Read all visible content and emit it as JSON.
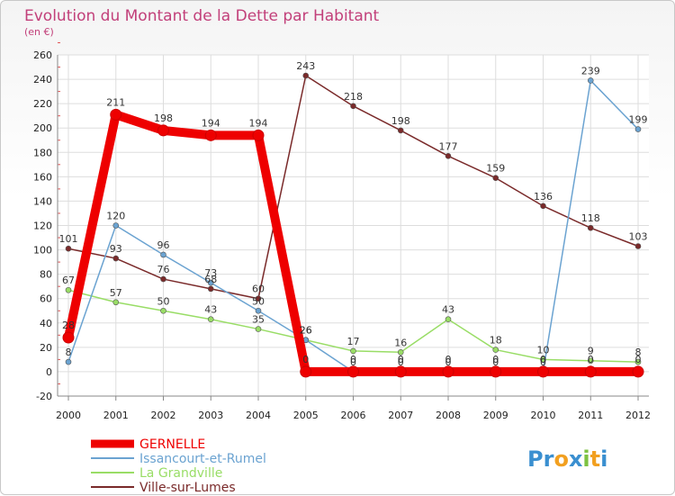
{
  "chart_data": {
    "type": "line",
    "title": "Evolution du Montant de la Dette par Habitant",
    "subtitle": "(en €)",
    "xlabel": "",
    "ylabel": "",
    "x": [
      "2000",
      "2001",
      "2002",
      "2003",
      "2004",
      "2005",
      "2006",
      "2007",
      "2008",
      "2009",
      "2010",
      "2011",
      "2012"
    ],
    "ylim": [
      -20,
      260
    ],
    "yticks": [
      "-20",
      "0",
      "20",
      "40",
      "60",
      "80",
      "100",
      "120",
      "140",
      "160",
      "180",
      "200",
      "220",
      "240",
      "260"
    ],
    "grid": true,
    "legend_position": "bottom-left",
    "series": [
      {
        "name": "GERNELLE",
        "color": "#ee0000",
        "values": [
          28,
          211,
          198,
          194,
          194,
          0,
          0,
          0,
          0,
          0,
          0,
          0,
          0
        ],
        "labels": [
          "28",
          "211",
          "198",
          "194",
          "194",
          "0",
          "0",
          "0",
          "0",
          "0",
          "0",
          "0",
          "0"
        ]
      },
      {
        "name": "Issancourt-et-Rumel",
        "color": "#6ba3d1",
        "values": [
          8,
          120,
          96,
          73,
          50,
          26,
          0,
          0,
          0,
          0,
          0,
          239,
          199
        ],
        "labels": [
          "8",
          "120",
          "96",
          "73",
          "50",
          "26",
          "0",
          "0",
          "0",
          "0",
          "0",
          "239",
          "199"
        ]
      },
      {
        "name": "La Grandville",
        "color": "#99dd66",
        "values": [
          67,
          57,
          50,
          43,
          35,
          26,
          17,
          16,
          43,
          18,
          10,
          9,
          8
        ],
        "labels": [
          "67",
          "57",
          "50",
          "43",
          "35",
          "26",
          "17",
          "16",
          "43",
          "18",
          "10",
          "9",
          "8"
        ]
      },
      {
        "name": "Ville-sur-Lumes",
        "color": "#7a2a2a",
        "values": [
          101,
          93,
          76,
          68,
          60,
          243,
          218,
          198,
          177,
          159,
          136,
          118,
          103
        ],
        "labels": [
          "101",
          "93",
          "76",
          "68",
          "60",
          "243",
          "218",
          "198",
          "177",
          "159",
          "136",
          "118",
          "103"
        ]
      }
    ]
  },
  "branding": {
    "logo_text": "Proxiti"
  }
}
